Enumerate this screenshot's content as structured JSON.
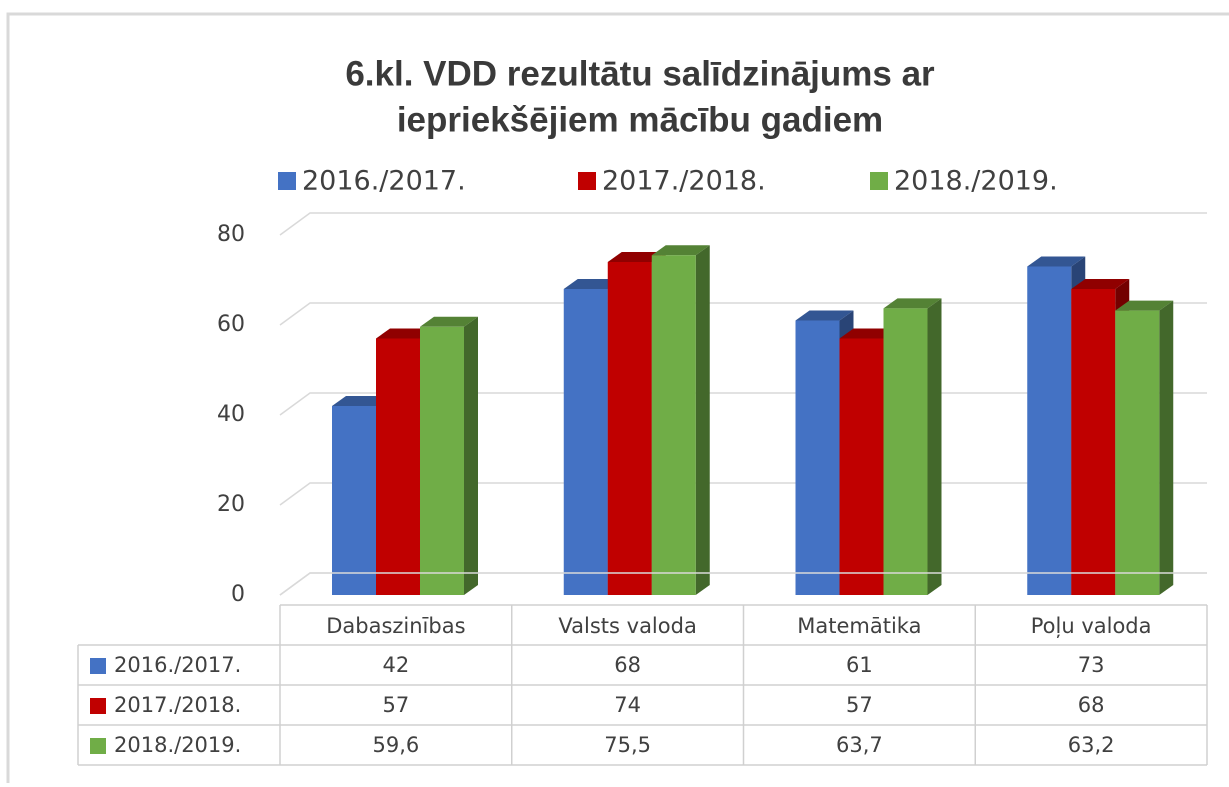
{
  "chart_data": {
    "type": "bar",
    "title": [
      "6.kl. VDD rezultātu salīdzinājums  ar",
      "iepriekšējiem mācību gadiem"
    ],
    "categories": [
      "Dabaszinības",
      "Valsts valoda",
      "Matemātika",
      "Poļu valoda"
    ],
    "series": [
      {
        "name": "2016./2017.",
        "color": "#4472c4",
        "values": [
          42,
          68,
          61,
          73
        ]
      },
      {
        "name": "2017./2018.",
        "color": "#c00000",
        "values": [
          57,
          74,
          57,
          68
        ]
      },
      {
        "name": "2018./2019.",
        "color": "#70ad47",
        "values": [
          59.6,
          75.5,
          63.7,
          63.2
        ],
        "value_labels": [
          "59,6",
          "75,5",
          "63,7",
          "63,2"
        ]
      }
    ],
    "ylim": [
      0,
      80
    ],
    "yticks": [
      0,
      20,
      40,
      60,
      80
    ],
    "grid": true,
    "legend": "top"
  }
}
